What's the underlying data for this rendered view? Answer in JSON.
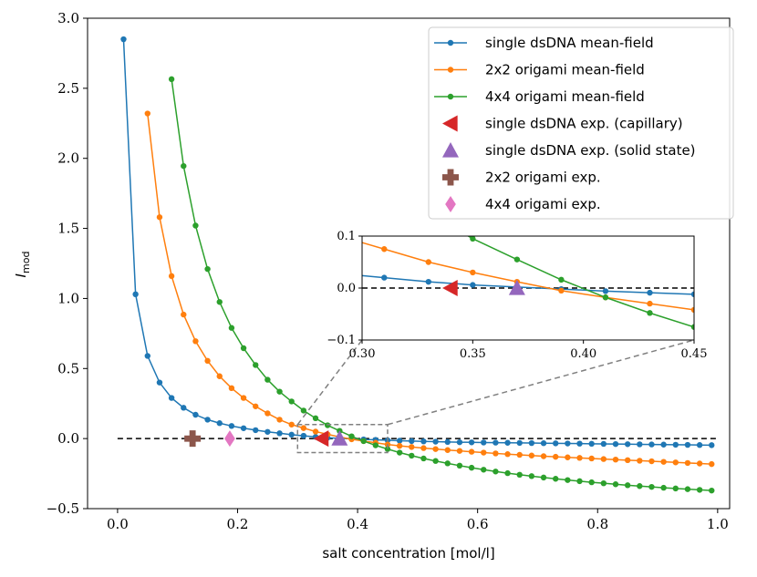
{
  "chart_data": {
    "type": "line",
    "xlabel": "salt concentration [mol/l]",
    "ylabel_main": "I",
    "ylabel_sub": "mod",
    "xlim": [
      -0.05,
      1.02
    ],
    "ylim": [
      -0.5,
      3.0
    ],
    "xticks": [
      0.0,
      0.2,
      0.4,
      0.6,
      0.8,
      1.0
    ],
    "xtick_labels": [
      "0.0",
      "0.2",
      "0.4",
      "0.6",
      "0.8",
      "1.0"
    ],
    "yticks": [
      -0.5,
      0.0,
      0.5,
      1.0,
      1.5,
      2.0,
      2.5,
      3.0
    ],
    "ytick_labels": [
      "−0.5",
      "0.0",
      "0.5",
      "1.0",
      "1.5",
      "2.0",
      "2.5",
      "3.0"
    ],
    "reference_line": {
      "y": 0,
      "x_range": [
        0.0,
        1.0
      ],
      "style": "dashed",
      "color": "#000000"
    },
    "series": [
      {
        "name": "single dsDNA mean-field",
        "color": "#1f77b4",
        "marker": "circle",
        "x": [
          0.01,
          0.03,
          0.05,
          0.07,
          0.09,
          0.11,
          0.13,
          0.15,
          0.17,
          0.19,
          0.21,
          0.23,
          0.25,
          0.27,
          0.29,
          0.31,
          0.33,
          0.35,
          0.37,
          0.39,
          0.41,
          0.43,
          0.45,
          0.47,
          0.49,
          0.51,
          0.53,
          0.55,
          0.57,
          0.59,
          0.61,
          0.63,
          0.65,
          0.67,
          0.69,
          0.71,
          0.73,
          0.75,
          0.77,
          0.79,
          0.81,
          0.83,
          0.85,
          0.87,
          0.89,
          0.91,
          0.93,
          0.95,
          0.97,
          0.99
        ],
        "y": [
          2.85,
          1.03,
          0.59,
          0.4,
          0.29,
          0.22,
          0.17,
          0.135,
          0.11,
          0.09,
          0.074,
          0.06,
          0.048,
          0.038,
          0.028,
          0.02,
          0.012,
          0.006,
          0.002,
          -0.002,
          -0.006,
          -0.009,
          -0.012,
          -0.015,
          -0.018,
          -0.02,
          -0.022,
          -0.024,
          -0.026,
          -0.027,
          -0.028,
          -0.029,
          -0.03,
          -0.031,
          -0.032,
          -0.033,
          -0.034,
          -0.035,
          -0.036,
          -0.037,
          -0.038,
          -0.039,
          -0.04,
          -0.041,
          -0.042,
          -0.043,
          -0.044,
          -0.045,
          -0.046,
          -0.047
        ]
      },
      {
        "name": "2x2 origami mean-field",
        "color": "#ff7f0e",
        "marker": "circle",
        "x": [
          0.05,
          0.07,
          0.09,
          0.11,
          0.13,
          0.15,
          0.17,
          0.19,
          0.21,
          0.23,
          0.25,
          0.27,
          0.29,
          0.31,
          0.33,
          0.35,
          0.37,
          0.39,
          0.41,
          0.43,
          0.45,
          0.47,
          0.49,
          0.51,
          0.53,
          0.55,
          0.57,
          0.59,
          0.61,
          0.63,
          0.65,
          0.67,
          0.69,
          0.71,
          0.73,
          0.75,
          0.77,
          0.79,
          0.81,
          0.83,
          0.85,
          0.87,
          0.89,
          0.91,
          0.93,
          0.95,
          0.97,
          0.99
        ],
        "y": [
          2.32,
          1.58,
          1.16,
          0.885,
          0.695,
          0.555,
          0.445,
          0.36,
          0.29,
          0.23,
          0.18,
          0.135,
          0.1,
          0.075,
          0.05,
          0.03,
          0.012,
          -0.005,
          -0.018,
          -0.03,
          -0.042,
          -0.052,
          -0.06,
          -0.068,
          -0.075,
          -0.082,
          -0.088,
          -0.094,
          -0.1,
          -0.106,
          -0.111,
          -0.116,
          -0.121,
          -0.126,
          -0.13,
          -0.134,
          -0.138,
          -0.142,
          -0.146,
          -0.15,
          -0.154,
          -0.158,
          -0.162,
          -0.166,
          -0.17,
          -0.174,
          -0.178,
          -0.182
        ]
      },
      {
        "name": "4x4 origami mean-field",
        "color": "#2ca02c",
        "marker": "circle",
        "x": [
          0.09,
          0.11,
          0.13,
          0.15,
          0.17,
          0.19,
          0.21,
          0.23,
          0.25,
          0.27,
          0.29,
          0.31,
          0.33,
          0.35,
          0.37,
          0.39,
          0.41,
          0.43,
          0.45,
          0.47,
          0.49,
          0.51,
          0.53,
          0.55,
          0.57,
          0.59,
          0.61,
          0.63,
          0.65,
          0.67,
          0.69,
          0.71,
          0.73,
          0.75,
          0.77,
          0.79,
          0.81,
          0.83,
          0.85,
          0.87,
          0.89,
          0.91,
          0.93,
          0.95,
          0.97,
          0.99
        ],
        "y": [
          2.565,
          1.945,
          1.52,
          1.21,
          0.975,
          0.79,
          0.645,
          0.525,
          0.42,
          0.335,
          0.265,
          0.2,
          0.145,
          0.095,
          0.055,
          0.016,
          -0.018,
          -0.048,
          -0.075,
          -0.1,
          -0.122,
          -0.142,
          -0.16,
          -0.177,
          -0.193,
          -0.208,
          -0.222,
          -0.235,
          -0.247,
          -0.258,
          -0.268,
          -0.278,
          -0.287,
          -0.296,
          -0.304,
          -0.312,
          -0.319,
          -0.326,
          -0.333,
          -0.339,
          -0.345,
          -0.351,
          -0.356,
          -0.361,
          -0.366,
          -0.371
        ]
      }
    ],
    "experimental_points": [
      {
        "name": "single dsDNA exp. (capillary)",
        "color": "#d62728",
        "marker": "triangle-left",
        "x": 0.34,
        "y": 0.0
      },
      {
        "name": "single dsDNA exp. (solid state)",
        "color": "#9467bd",
        "marker": "triangle-up",
        "x": 0.37,
        "y": 0.0
      },
      {
        "name": "2x2 origami exp.",
        "color": "#8c564b",
        "marker": "plus",
        "x": 0.125,
        "y": 0.0
      },
      {
        "name": "4x4 origami exp.",
        "color": "#e377c2",
        "marker": "diamond",
        "x": 0.187,
        "y": 0.0
      }
    ],
    "inset": {
      "xlim": [
        0.3,
        0.45
      ],
      "ylim": [
        -0.1,
        0.1
      ],
      "xticks": [
        0.3,
        0.35,
        0.4,
        0.45
      ],
      "xtick_labels": [
        "0.30",
        "0.35",
        "0.40",
        "0.45"
      ],
      "yticks": [
        -0.1,
        0.0,
        0.1
      ],
      "ytick_labels": [
        "−0.1",
        "0.0",
        "0.1"
      ],
      "zoom_region_label": "dashed gray rectangle"
    },
    "legend": {
      "position": "top-right",
      "entries": [
        "single dsDNA mean-field",
        "2x2 origami mean-field",
        "4x4 origami mean-field",
        "single dsDNA exp. (capillary)",
        "single dsDNA exp. (solid state)",
        "2x2 origami exp.",
        "4x4 origami exp."
      ]
    }
  }
}
